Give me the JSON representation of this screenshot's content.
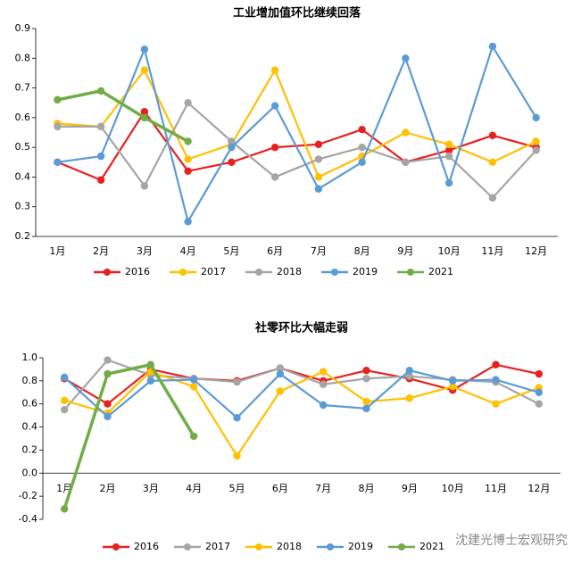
{
  "chart_data": [
    {
      "type": "line",
      "title": "工业增加值环比继续回落",
      "categories": [
        "1月",
        "2月",
        "3月",
        "4月",
        "5月",
        "6月",
        "7月",
        "8月",
        "9月",
        "10月",
        "11月",
        "12月"
      ],
      "ylim": [
        0.2,
        0.9
      ],
      "yticks": [
        0.2,
        0.3,
        0.4,
        0.5,
        0.6,
        0.7,
        0.8,
        0.9
      ],
      "grid": false,
      "series": [
        {
          "name": "2016",
          "color": "#e8201f",
          "values": [
            0.45,
            0.39,
            0.62,
            0.42,
            0.45,
            0.5,
            0.51,
            0.56,
            0.45,
            0.49,
            0.54,
            0.5
          ]
        },
        {
          "name": "2017",
          "color": "#ffc000",
          "values": [
            0.58,
            0.57,
            0.76,
            0.46,
            0.51,
            0.76,
            0.4,
            0.47,
            0.55,
            0.51,
            0.45,
            0.52
          ]
        },
        {
          "name": "2018",
          "color": "#a5a5a5",
          "values": [
            0.57,
            0.57,
            0.37,
            0.65,
            0.52,
            0.4,
            0.46,
            0.5,
            0.45,
            0.47,
            0.33,
            0.49
          ]
        },
        {
          "name": "2019",
          "color": "#5b9bd5",
          "values": [
            0.45,
            0.47,
            0.83,
            0.25,
            0.5,
            0.64,
            0.36,
            0.45,
            0.8,
            0.38,
            0.84,
            0.6
          ]
        },
        {
          "name": "2021",
          "color": "#70ad47",
          "values": [
            0.66,
            0.69,
            0.6,
            0.52,
            null,
            null,
            null,
            null,
            null,
            null,
            null,
            null
          ]
        }
      ]
    },
    {
      "type": "line",
      "title": "社零环比大幅走弱",
      "categories": [
        "1月",
        "2月",
        "3月",
        "4月",
        "5月",
        "6月",
        "7月",
        "8月",
        "9月",
        "10月",
        "11月",
        "12月"
      ],
      "ylim": [
        -0.4,
        1.0
      ],
      "yticks": [
        -0.4,
        -0.2,
        {
          "value": 0,
          "label": "0.0"
        },
        0.2,
        0.4,
        0.6,
        0.8,
        {
          "value": 1,
          "label": "1.0"
        }
      ],
      "grid": false,
      "series": [
        {
          "name": "2016",
          "color": "#e8201f",
          "values": [
            0.82,
            0.6,
            0.9,
            0.82,
            0.8,
            0.91,
            0.8,
            0.89,
            0.82,
            0.72,
            0.94,
            0.86
          ]
        },
        {
          "name": "2017",
          "color": "#a5a5a5",
          "values": [
            0.55,
            0.98,
            0.85,
            0.82,
            0.79,
            0.91,
            0.77,
            0.82,
            0.84,
            0.81,
            0.79,
            0.6
          ]
        },
        {
          "name": "2018",
          "color": "#ffc000",
          "values": [
            0.63,
            0.52,
            0.88,
            0.75,
            0.15,
            0.71,
            0.88,
            0.62,
            0.65,
            0.75,
            0.6,
            0.74
          ]
        },
        {
          "name": "2019",
          "color": "#5b9bd5",
          "values": [
            0.83,
            0.49,
            0.8,
            0.81,
            0.48,
            0.86,
            0.59,
            0.56,
            0.89,
            0.8,
            0.81,
            0.7
          ]
        },
        {
          "name": "2021",
          "color": "#70ad47",
          "values": [
            -0.31,
            0.86,
            0.94,
            0.32,
            null,
            null,
            null,
            null,
            null,
            null,
            null,
            null
          ]
        }
      ]
    }
  ],
  "watermark": "沈建光博士宏观研究"
}
